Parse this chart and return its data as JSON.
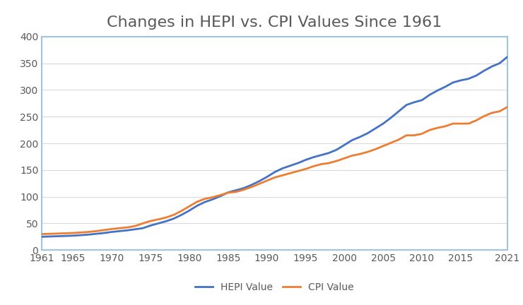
{
  "title": "Changes in HEPI vs. CPI Values Since 1961",
  "title_color": "#595959",
  "title_fontsize": 16,
  "hepi_years": [
    1961,
    1962,
    1963,
    1964,
    1965,
    1966,
    1967,
    1968,
    1969,
    1970,
    1971,
    1972,
    1973,
    1974,
    1975,
    1976,
    1977,
    1978,
    1979,
    1980,
    1981,
    1982,
    1983,
    1984,
    1985,
    1986,
    1987,
    1988,
    1989,
    1990,
    1991,
    1992,
    1993,
    1994,
    1995,
    1996,
    1997,
    1998,
    1999,
    2000,
    2001,
    2002,
    2003,
    2004,
    2005,
    2006,
    2007,
    2008,
    2009,
    2010,
    2011,
    2012,
    2013,
    2014,
    2015,
    2016,
    2017,
    2018,
    2019,
    2020,
    2021
  ],
  "hepi_values": [
    25,
    25.5,
    26,
    26.5,
    27,
    28,
    29,
    30.5,
    32,
    34,
    35.5,
    37,
    39,
    41,
    46,
    50,
    54,
    59,
    66,
    74,
    83,
    90,
    95,
    101,
    108,
    112,
    116,
    122,
    129,
    137,
    146,
    153,
    158,
    163,
    169,
    174,
    178,
    182,
    188,
    197,
    206,
    212,
    219,
    228,
    237,
    248,
    260,
    272,
    277,
    281,
    291,
    299,
    306,
    314,
    318,
    321,
    327,
    336,
    344,
    350,
    362
  ],
  "cpi_years": [
    1961,
    1962,
    1963,
    1964,
    1965,
    1966,
    1967,
    1968,
    1969,
    1970,
    1971,
    1972,
    1973,
    1974,
    1975,
    1976,
    1977,
    1978,
    1979,
    1980,
    1981,
    1982,
    1983,
    1984,
    1985,
    1986,
    1987,
    1988,
    1989,
    1990,
    1991,
    1992,
    1993,
    1994,
    1995,
    1996,
    1997,
    1998,
    1999,
    2000,
    2001,
    2002,
    2003,
    2004,
    2005,
    2006,
    2007,
    2008,
    2009,
    2010,
    2011,
    2012,
    2013,
    2014,
    2015,
    2016,
    2017,
    2018,
    2019,
    2020,
    2021
  ],
  "cpi_values": [
    30,
    30.5,
    31,
    31.5,
    32,
    33,
    34,
    35.5,
    37.5,
    39.5,
    41,
    42.5,
    45,
    50,
    54.5,
    57.5,
    61,
    66,
    73.5,
    82,
    90.5,
    96,
    99,
    103,
    107.5,
    109,
    113,
    118,
    124,
    130,
    136,
    140,
    144,
    148,
    152,
    157,
    161,
    163,
    167,
    172,
    177,
    180,
    184,
    189,
    195,
    201,
    207,
    215,
    215,
    218,
    225,
    229,
    232,
    237,
    237,
    237,
    243,
    251,
    257,
    260,
    268
  ],
  "hepi_color": "#4472c4",
  "cpi_color": "#ed7d31",
  "line_width": 2.0,
  "ylim": [
    0,
    400
  ],
  "yticks": [
    0,
    50,
    100,
    150,
    200,
    250,
    300,
    350,
    400
  ],
  "xlim": [
    1961,
    2021
  ],
  "xticks": [
    1961,
    1965,
    1970,
    1975,
    1980,
    1985,
    1990,
    1995,
    2000,
    2005,
    2010,
    2015,
    2021
  ],
  "legend_labels": [
    "HEPI Value",
    "CPI Value"
  ],
  "legend_fontsize": 10,
  "tick_label_color": "#595959",
  "tick_fontsize": 10,
  "spine_color": "#9dc3e6",
  "grid_color": "#d9d9d9",
  "background_color": "#ffffff",
  "plot_bg_color": "#ffffff"
}
